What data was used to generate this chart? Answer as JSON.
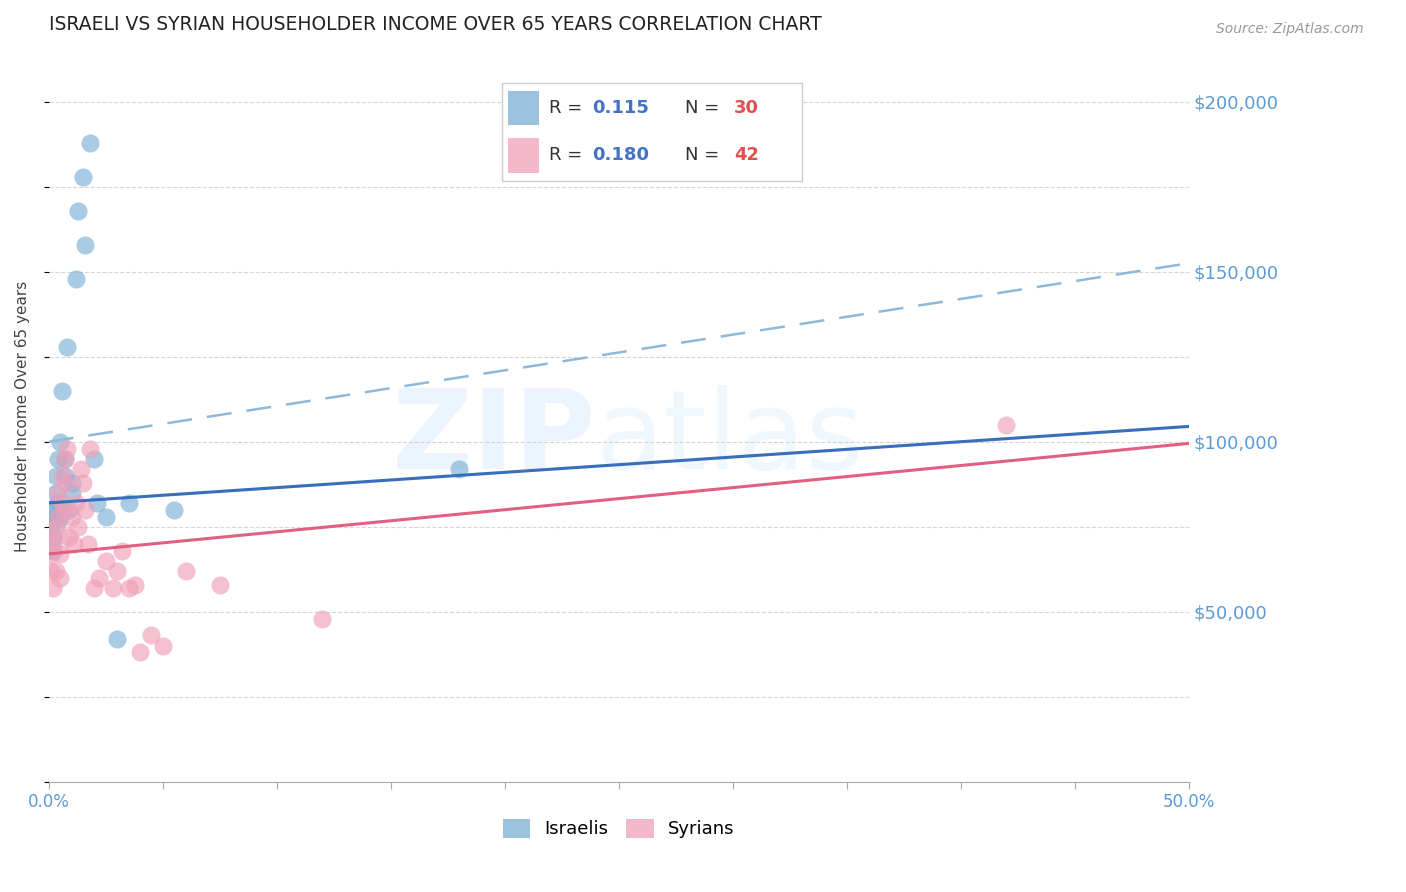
{
  "title": "ISRAELI VS SYRIAN HOUSEHOLDER INCOME OVER 65 YEARS CORRELATION CHART",
  "source": "Source: ZipAtlas.com",
  "ylabel": "Householder Income Over 65 years",
  "y_tick_labels": [
    "$50,000",
    "$100,000",
    "$150,000",
    "$200,000"
  ],
  "y_tick_values": [
    50000,
    100000,
    150000,
    200000
  ],
  "x_range": [
    0.0,
    0.5
  ],
  "y_range": [
    0,
    215000
  ],
  "israeli_color": "#7BAFD4",
  "syrian_color": "#F0A0B8",
  "israeli_line_color": "#3A6EBB",
  "syrian_line_color": "#E06080",
  "dashed_line_color": "#90B8D8",
  "watermark_zip": "ZIP",
  "watermark_atlas": "atlas",
  "background_color": "#ffffff",
  "israelis_x": [
    0.001,
    0.001,
    0.002,
    0.002,
    0.003,
    0.003,
    0.003,
    0.004,
    0.004,
    0.005,
    0.005,
    0.006,
    0.007,
    0.007,
    0.008,
    0.009,
    0.01,
    0.01,
    0.012,
    0.013,
    0.015,
    0.016,
    0.018,
    0.02,
    0.021,
    0.025,
    0.03,
    0.035,
    0.055,
    0.18
  ],
  "israelis_y": [
    80000,
    75000,
    72000,
    68000,
    90000,
    85000,
    78000,
    95000,
    82000,
    100000,
    78000,
    115000,
    90000,
    95000,
    128000,
    80000,
    85000,
    88000,
    148000,
    168000,
    178000,
    158000,
    188000,
    95000,
    82000,
    78000,
    42000,
    82000,
    80000,
    92000
  ],
  "syrians_x": [
    0.001,
    0.001,
    0.002,
    0.002,
    0.002,
    0.003,
    0.003,
    0.004,
    0.004,
    0.005,
    0.005,
    0.006,
    0.006,
    0.007,
    0.007,
    0.008,
    0.008,
    0.009,
    0.01,
    0.011,
    0.012,
    0.013,
    0.014,
    0.015,
    0.016,
    0.017,
    0.018,
    0.02,
    0.022,
    0.025,
    0.028,
    0.03,
    0.032,
    0.035,
    0.038,
    0.04,
    0.045,
    0.05,
    0.06,
    0.075,
    0.12,
    0.42
  ],
  "syrians_y": [
    62000,
    67000,
    72000,
    57000,
    70000,
    75000,
    62000,
    78000,
    85000,
    60000,
    67000,
    82000,
    90000,
    95000,
    80000,
    88000,
    98000,
    72000,
    78000,
    70000,
    82000,
    75000,
    92000,
    88000,
    80000,
    70000,
    98000,
    57000,
    60000,
    65000,
    57000,
    62000,
    68000,
    57000,
    58000,
    38000,
    43000,
    40000,
    62000,
    58000,
    48000,
    105000
  ],
  "israeli_intercept": 82000,
  "israeli_slope": 45000,
  "syrian_intercept": 67000,
  "syrian_slope": 65000,
  "dashed_intercept": 100000,
  "dashed_slope": 105000,
  "large_bubble_x": [
    0.0008
  ],
  "large_bubble_y": [
    72000
  ],
  "large_bubble_size": 900
}
